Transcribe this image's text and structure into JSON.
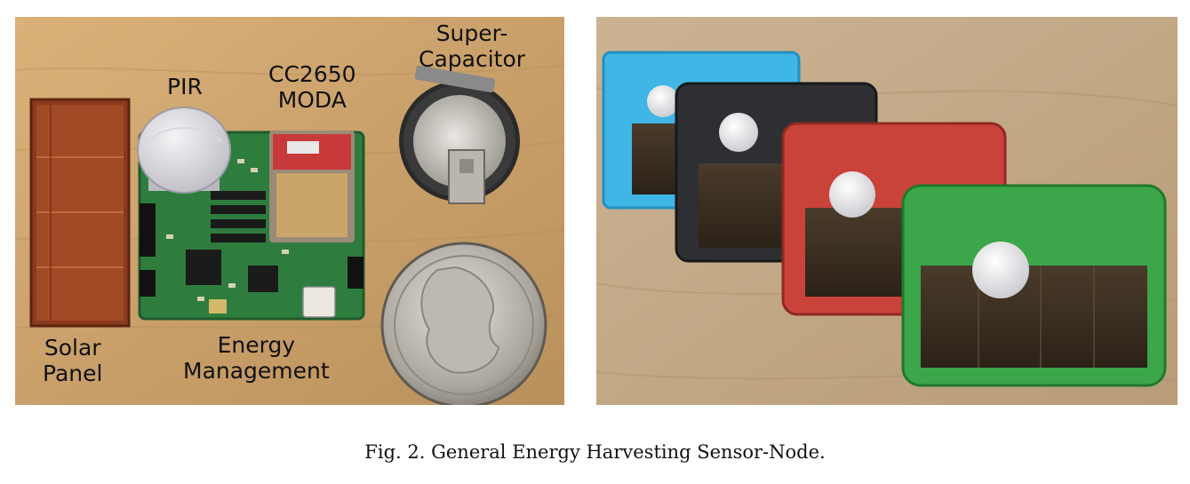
{
  "figure": {
    "caption": "Fig. 2.  General Energy Harvesting Sensor-Node.",
    "labels": {
      "pir": "PIR",
      "cc2650_line1": "CC2650",
      "cc2650_line2": "MODA",
      "supercap_line1": "Super-",
      "supercap_line2": "Capacitor",
      "solar_line1": "Solar",
      "solar_line2": "Panel",
      "energy_line1": "Energy",
      "energy_line2": "Management"
    }
  }
}
